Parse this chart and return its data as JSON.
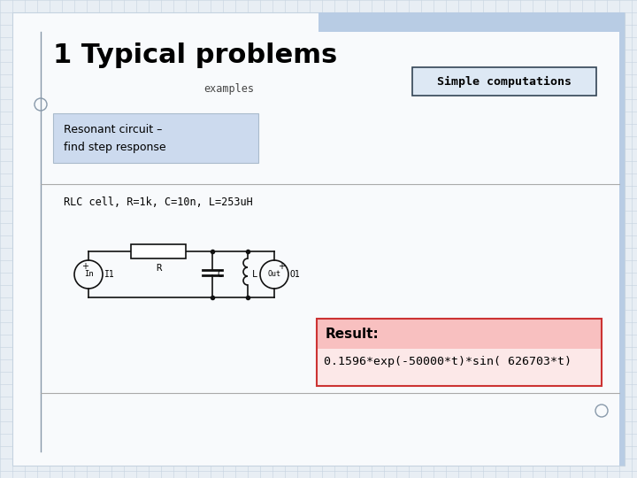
{
  "title": "1 Typical problems",
  "subtitle": "examples",
  "simple_computations_label": "Simple computations",
  "resonant_box_text": "Resonant circuit –\nfind step response",
  "rlc_label": "RLC cell, R=1k, C=10n, L=253uH",
  "result_label": "Result:",
  "result_formula": "0.1596*exp(-50000*t)*sin( 626703*t)",
  "bg_color": "#e8eef4",
  "grid_color": "#c5d3e0",
  "title_color": "#000000",
  "slide_bg": "#f8fafc",
  "blue_accent": "#7090b0",
  "top_bar_color": "#b8cce4",
  "resonant_box_fill": "#ccdaee",
  "resonant_box_edge": "#aabbcc",
  "simple_comp_fill": "#dde8f4",
  "simple_comp_edge": "#334455",
  "result_box_fill": "#fce8e8",
  "result_box_top": "#f8c0c0",
  "result_box_edge": "#cc3333",
  "vert_line_color": "#8899aa",
  "divider_color": "#aaaaaa"
}
